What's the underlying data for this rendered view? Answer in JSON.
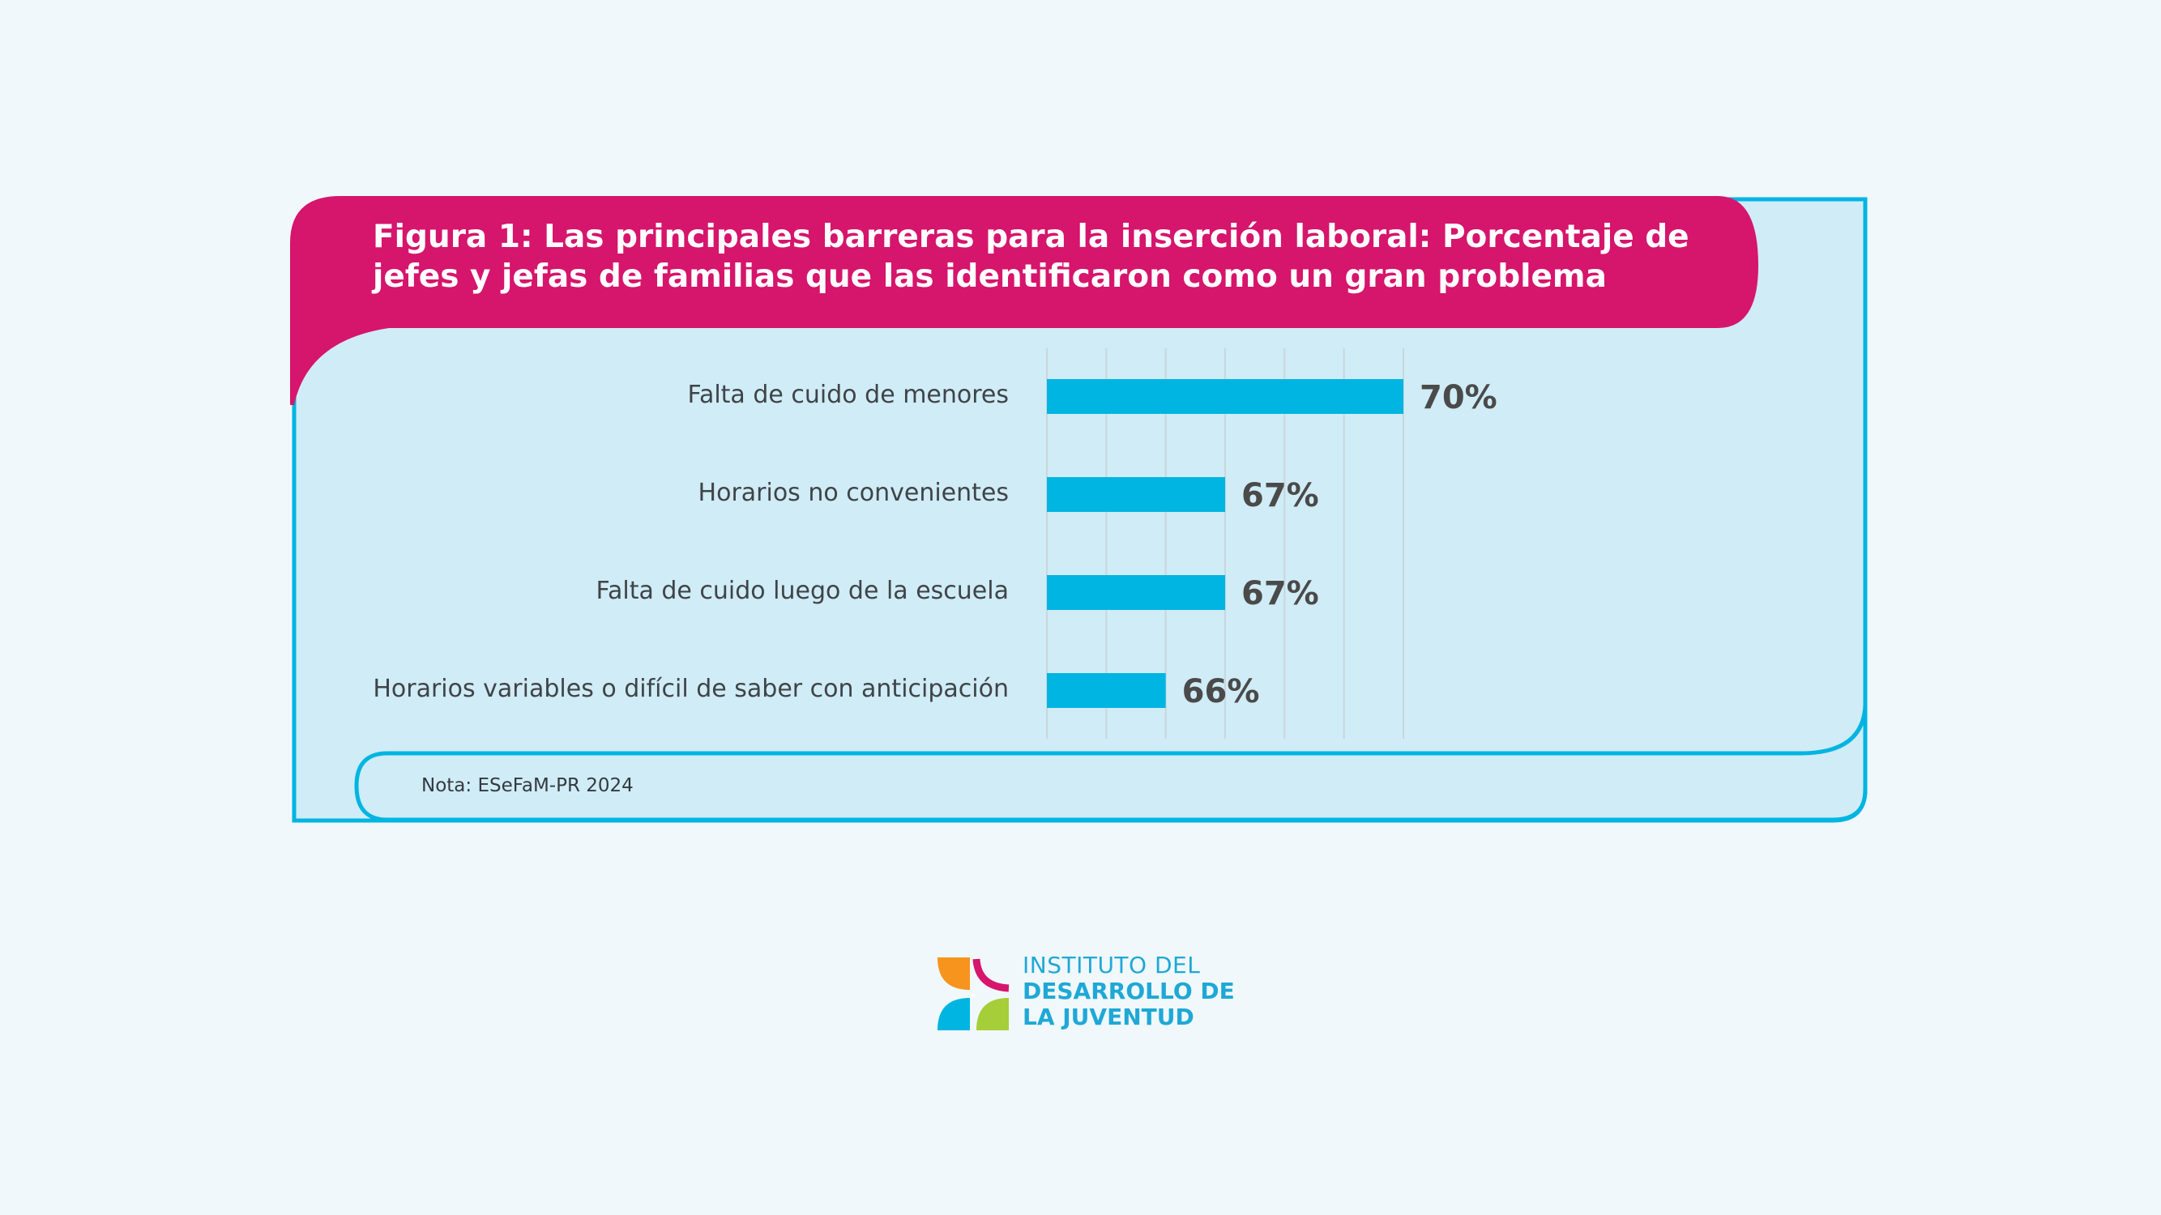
{
  "title": "Figura 1: Las principales barreras para la inserción laboral: Porcentaje de jefes y jefas de familias que las identificaron como un gran problema",
  "note": "Nota: ESeFaM-PR 2024",
  "logo": {
    "line1": "INSTITUTO DEL",
    "line2": "DESARROLLO DE",
    "line3": "LA JUVENTUD"
  },
  "colors": {
    "background": "#f0f8fb",
    "panel": "#d0ecf6",
    "border": "#00b5e2",
    "title_band": "#d6156c",
    "bar": "#00b5e2",
    "value_text": "#4a4a4a"
  },
  "chart_data": {
    "type": "bar",
    "orientation": "horizontal",
    "categories": [
      "Falta de cuido de menores",
      "Horarios no convenientes",
      "Falta de cuido luego de la escuela",
      "Horarios variables o difícil de saber con anticipación"
    ],
    "values": [
      70,
      67,
      67,
      66
    ],
    "value_labels": [
      "70%",
      "67%",
      "67%",
      "66%"
    ],
    "xlim": [
      64,
      73
    ],
    "grid": true
  }
}
